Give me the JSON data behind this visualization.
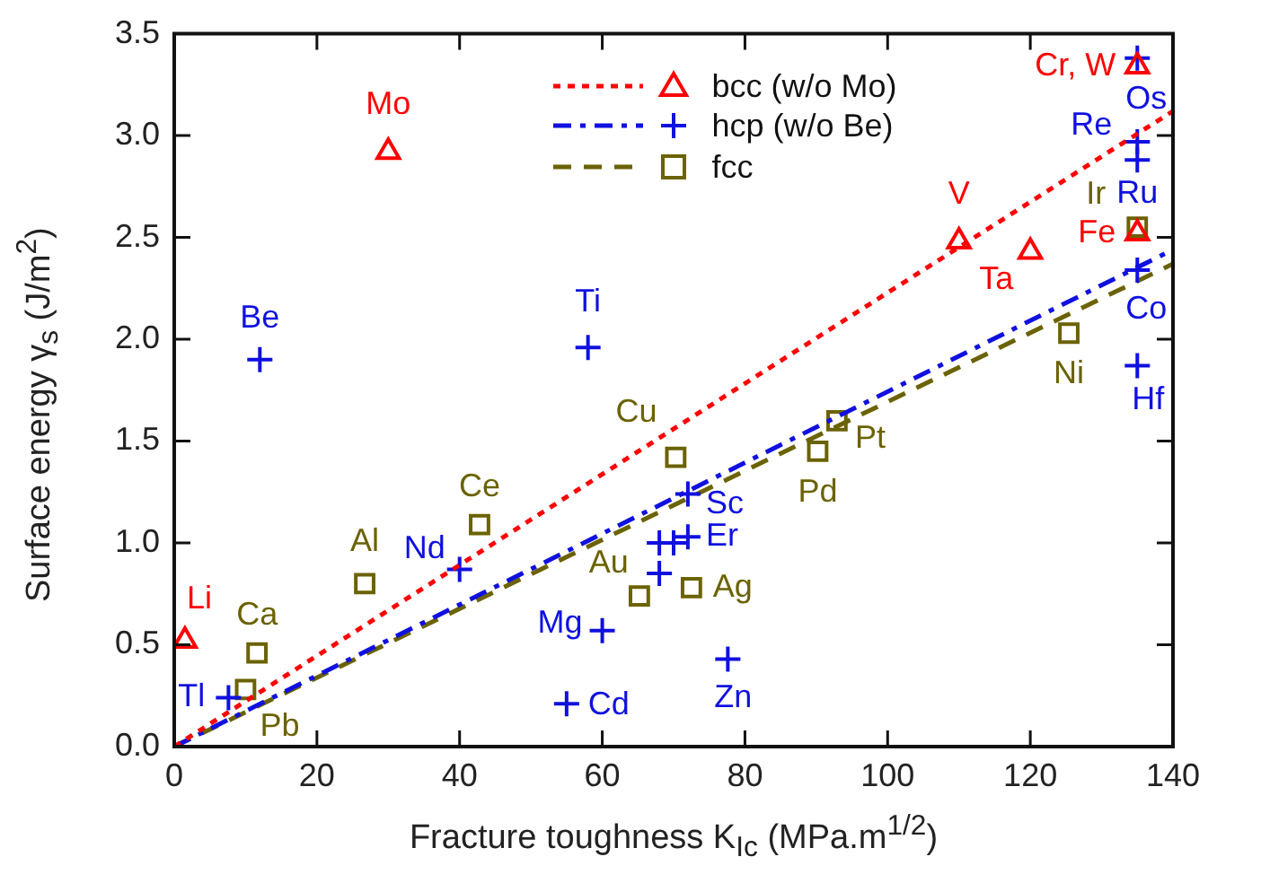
{
  "chart_data": {
    "type": "scatter",
    "xlabel": "Fracture toughness K$_{Ic}$ (MPa.m$^{1/2}$)",
    "ylabel": "Surface energy γ$_{s}$ (J/m$^{2}$)",
    "xlim": [
      0,
      140
    ],
    "xticks": [
      0,
      20,
      40,
      60,
      80,
      100,
      120,
      140
    ],
    "ylim": [
      0,
      3.5
    ],
    "yticks": [
      {
        "value": 0,
        "label": "0.0"
      },
      {
        "value": 0.5,
        "label": "0.5"
      },
      {
        "value": 1,
        "label": "1.0"
      },
      {
        "value": 1.5,
        "label": "1.5"
      },
      {
        "value": 2,
        "label": "2.0"
      },
      {
        "value": 2.5,
        "label": "2.5"
      },
      {
        "value": 3,
        "label": "3.0"
      },
      {
        "value": 3.5,
        "label": "3.5"
      }
    ],
    "grid": false,
    "legend": "top",
    "series": [
      {
        "name": "bcc (w/o Mo)",
        "type": "scatter",
        "marker": "triangle",
        "color": "#ff0000",
        "x": [
          1.5,
          30,
          110,
          120,
          135,
          135
        ],
        "values": [
          0.52,
          2.92,
          2.48,
          2.43,
          2.52,
          3.34
        ]
      },
      {
        "type": "line",
        "color": "#ff0000",
        "line_style": "dotted",
        "x": [
          0,
          140
        ],
        "values": [
          0,
          3.12
        ]
      },
      {
        "name": "hcp (w/o Be)",
        "type": "scatter",
        "marker": "cross",
        "color": "#1010e0",
        "x": [
          12,
          58,
          135,
          135,
          135,
          135,
          135,
          7.6,
          40,
          60,
          55,
          68,
          68,
          70,
          72,
          72,
          77.6
        ],
        "values": [
          1.9,
          1.96,
          3.38,
          2.97,
          2.88,
          2.34,
          1.87,
          0.24,
          0.87,
          0.57,
          0.21,
          0.85,
          1.0,
          1.0,
          1.03,
          1.24,
          0.43
        ]
      },
      {
        "type": "line",
        "color": "#1010e0",
        "line_style": "dashdot",
        "x": [
          0,
          140
        ],
        "values": [
          0,
          2.44
        ]
      },
      {
        "name": "fcc",
        "type": "scatter",
        "marker": "square",
        "color": "#6b6200",
        "x": [
          11.6,
          10,
          26.7,
          42.8,
          70.3,
          65.2,
          72.5,
          90.2,
          92.9,
          125.4,
          135
        ],
        "values": [
          0.46,
          0.28,
          0.8,
          1.09,
          1.42,
          0.74,
          0.78,
          1.45,
          1.6,
          2.03,
          2.55
        ]
      },
      {
        "type": "line",
        "color": "#6b6200",
        "line_style": "dashed",
        "x": [
          0,
          140
        ],
        "values": [
          0,
          2.37
        ]
      }
    ],
    "annotations": [
      {
        "text": "Li",
        "x": 1.5,
        "y": 0.52
      },
      {
        "text": "Mo",
        "x": 30,
        "y": 2.92
      },
      {
        "text": "Cr, W",
        "x": 135,
        "y": 3.34
      },
      {
        "text": "V",
        "x": 110,
        "y": 2.48
      },
      {
        "text": "Ta",
        "x": 120,
        "y": 2.43
      },
      {
        "text": "Fe",
        "x": 135,
        "y": 2.52
      },
      {
        "text": "Be",
        "x": 12,
        "y": 1.9
      },
      {
        "text": "Ti",
        "x": 58,
        "y": 1.96
      },
      {
        "text": "Os",
        "x": 135,
        "y": 3.38
      },
      {
        "text": "Re",
        "x": 135,
        "y": 2.97
      },
      {
        "text": "Ru",
        "x": 135,
        "y": 2.88
      },
      {
        "text": "Co",
        "x": 135,
        "y": 2.34
      },
      {
        "text": "Hf",
        "x": 135,
        "y": 1.87
      },
      {
        "text": "Tl",
        "x": 7.6,
        "y": 0.24
      },
      {
        "text": "Nd",
        "x": 40,
        "y": 0.87
      },
      {
        "text": "Mg",
        "x": 60,
        "y": 0.57
      },
      {
        "text": "Cd",
        "x": 55,
        "y": 0.21
      },
      {
        "text": "Er",
        "x": 72,
        "y": 1.03
      },
      {
        "text": "Sc",
        "x": 72,
        "y": 1.24
      },
      {
        "text": "Zn",
        "x": 77.6,
        "y": 0.43
      },
      {
        "text": "Ca",
        "x": 11.6,
        "y": 0.46
      },
      {
        "text": "Pb",
        "x": 10,
        "y": 0.28
      },
      {
        "text": "Al",
        "x": 26.7,
        "y": 0.8
      },
      {
        "text": "Ce",
        "x": 42.8,
        "y": 1.09
      },
      {
        "text": "Cu",
        "x": 70.3,
        "y": 1.42
      },
      {
        "text": "Au",
        "x": 65.2,
        "y": 0.74
      },
      {
        "text": "Ag",
        "x": 72.5,
        "y": 0.78
      },
      {
        "text": "Pd",
        "x": 90.2,
        "y": 1.45
      },
      {
        "text": "Pt",
        "x": 92.9,
        "y": 1.6
      },
      {
        "text": "Ni",
        "x": 125.4,
        "y": 2.03
      },
      {
        "text": "Ir",
        "x": 135,
        "y": 2.55
      }
    ]
  }
}
